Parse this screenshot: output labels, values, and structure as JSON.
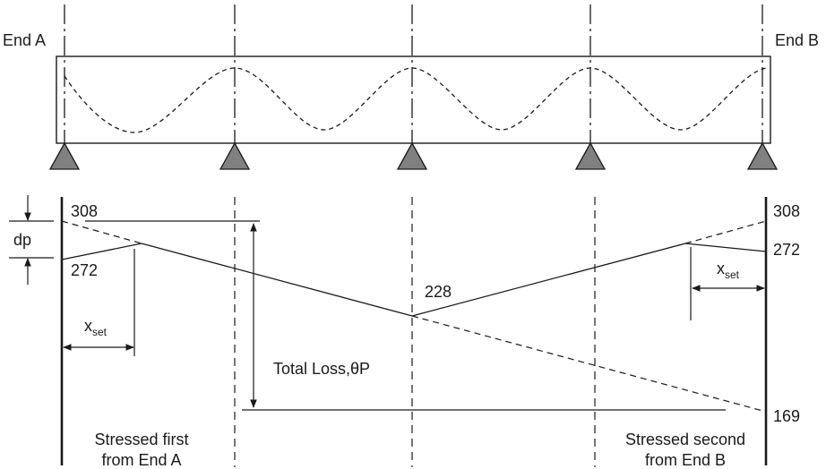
{
  "beam": {
    "end_a_label": "End A",
    "end_b_label": "End B",
    "support_count": 5
  },
  "loss_diagram": {
    "end_a_jack_value": "308",
    "end_a_anchor_value": "272",
    "end_b_jack_value": "308",
    "end_b_anchor_value": "272",
    "mid_value": "228",
    "far_end_value": "169",
    "dp_label": "dp",
    "xset_main": "x",
    "xset_sub": "set",
    "total_loss_label": "Total Loss,θP",
    "stressed_a_line1": "Stressed first",
    "stressed_a_line2": "from End A",
    "stressed_b_line1": "Stressed second",
    "stressed_b_line2": "from End B"
  },
  "colors": {
    "line": "#1a1a1a",
    "support_fill": "#808080"
  }
}
